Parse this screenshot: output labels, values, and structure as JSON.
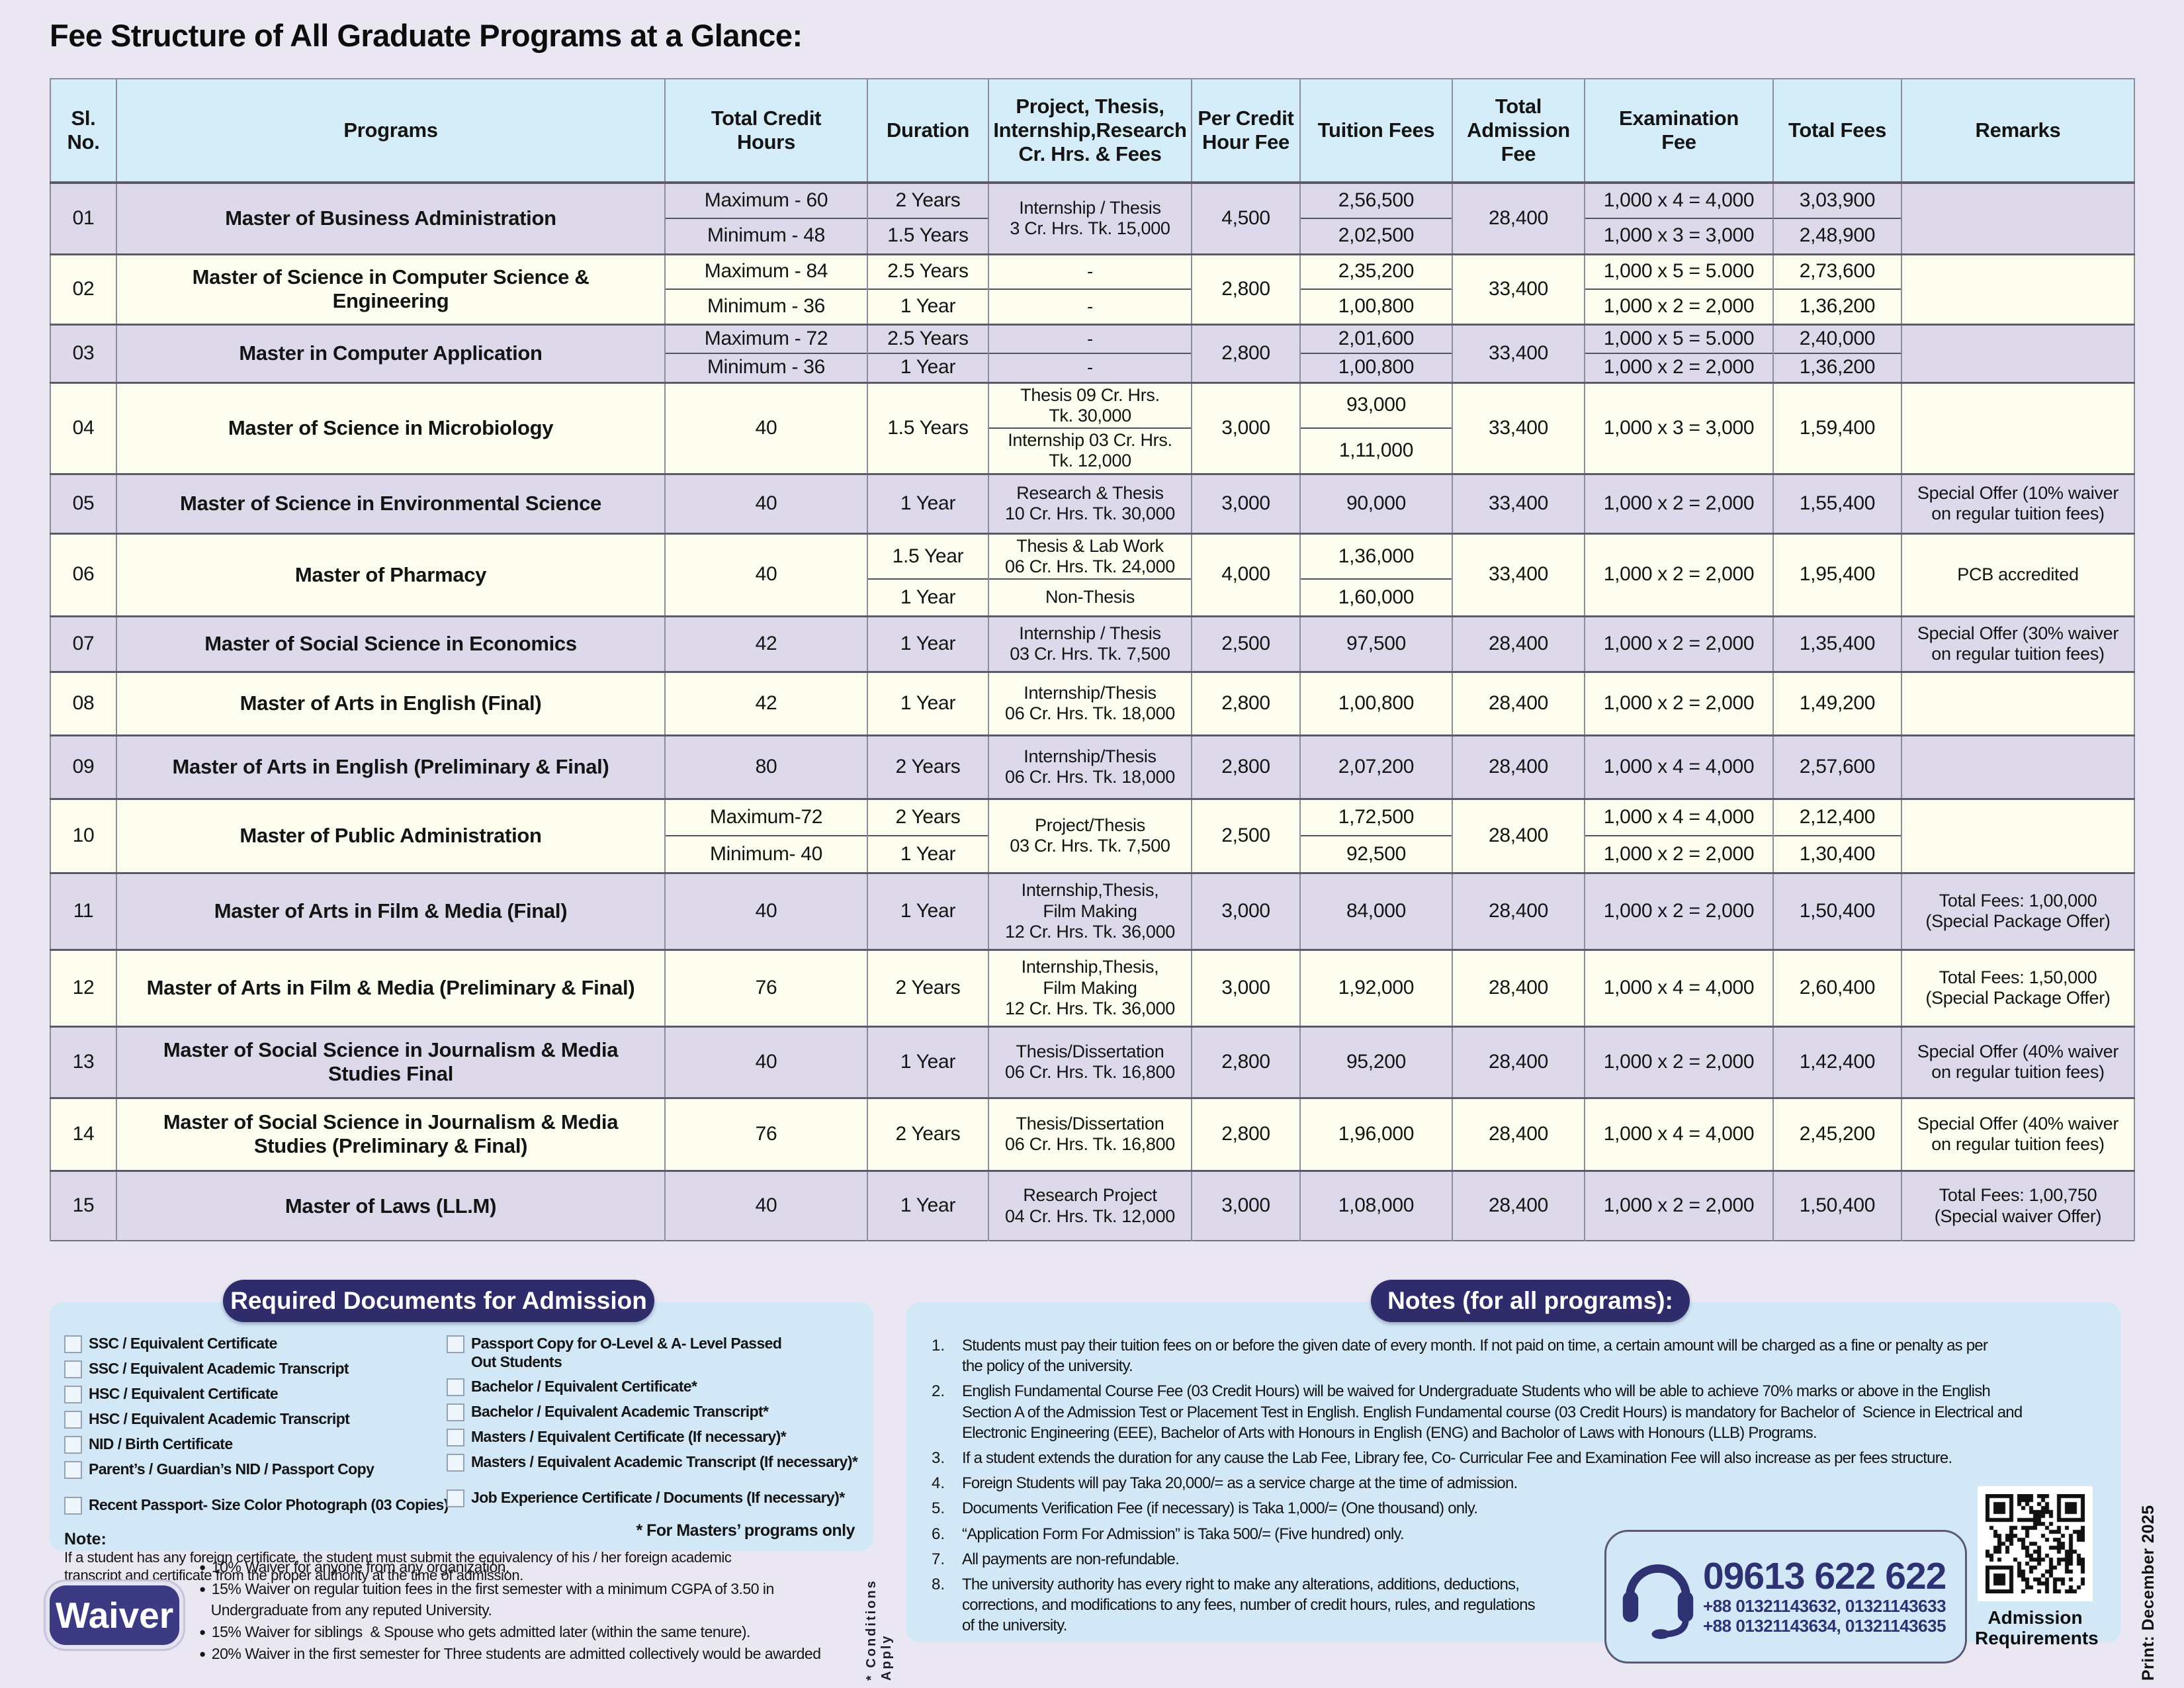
{
  "page": {
    "title": "Fee Structure of All Graduate Programs at a Glance:"
  },
  "colors": {
    "accent_navy": "#2e2c6b",
    "header_blue": "#d5edf9",
    "row_lavender": "#ddd8ea",
    "row_cream": "#fdfdef",
    "panel_blue": "#d3e8f7",
    "phone_navy": "#2e3272",
    "page_bg": "#eae7f3"
  },
  "table": {
    "columns": [
      "Sl.\nNo.",
      "Programs",
      "Total Credit\nHours",
      "Duration",
      "Project, Thesis,\nInternship,Research\nCr. Hrs. & Fees",
      "Per Credit\nHour Fee",
      "Tuition Fees",
      "Total\nAdmission\nFee",
      "Examination\nFee",
      "Total Fees",
      "Remarks"
    ],
    "rows": [
      {
        "sl": "01",
        "program": "Master of Business Administration",
        "shade": "lav",
        "credit": [
          "Maximum - 60",
          "Minimum - 48"
        ],
        "duration": [
          "2 Years",
          "1.5 Years"
        ],
        "project": [
          "Internship / Thesis\n3 Cr. Hrs. Tk. 15,000"
        ],
        "per_credit": [
          "4,500"
        ],
        "tuition": [
          "2,56,500",
          "2,02,500"
        ],
        "admission": [
          "28,400"
        ],
        "exam": [
          "1,000 x 4 = 4,000",
          "1,000 x 3 = 3,000"
        ],
        "total": [
          "3,03,900",
          "2,48,900"
        ],
        "remarks": [
          ""
        ]
      },
      {
        "sl": "02",
        "program": "Master of Science in Computer Science &\nEngineering",
        "shade": "cream",
        "credit": [
          "Maximum - 84",
          "Minimum - 36"
        ],
        "duration": [
          "2.5 Years",
          "1 Year"
        ],
        "project": [
          "-",
          "-"
        ],
        "per_credit": [
          "2,800"
        ],
        "tuition": [
          "2,35,200",
          "1,00,800"
        ],
        "admission": [
          "33,400"
        ],
        "exam": [
          "1,000 x 5 = 5.000",
          "1,000 x 2 = 2,000"
        ],
        "total": [
          "2,73,600",
          "1,36,200"
        ],
        "remarks": [
          ""
        ]
      },
      {
        "sl": "03",
        "program": "Master in Computer Application",
        "shade": "lav",
        "credit": [
          "Maximum - 72",
          "Minimum - 36"
        ],
        "duration": [
          "2.5 Years",
          "1 Year"
        ],
        "project": [
          "-",
          "-"
        ],
        "per_credit": [
          "2,800"
        ],
        "tuition": [
          "2,01,600",
          "1,00,800"
        ],
        "admission": [
          "33,400"
        ],
        "exam": [
          "1,000 x 5 = 5.000",
          "1,000 x 2 = 2,000"
        ],
        "total": [
          "2,40,000",
          "1,36,200"
        ],
        "remarks": [
          ""
        ]
      },
      {
        "sl": "04",
        "program": "Master of Science in Microbiology",
        "shade": "cream",
        "credit": [
          "40"
        ],
        "duration": [
          "1.5 Years"
        ],
        "project": [
          "Thesis 09 Cr. Hrs.\nTk. 30,000",
          "Internship 03 Cr. Hrs.\nTk. 12,000"
        ],
        "per_credit": [
          "3,000"
        ],
        "tuition": [
          "93,000",
          "1,11,000"
        ],
        "admission": [
          "33,400"
        ],
        "exam": [
          "1,000 x 3 = 3,000"
        ],
        "total": [
          "1,59,400"
        ],
        "remarks": [
          ""
        ]
      },
      {
        "sl": "05",
        "program": "Master of Science in Environmental Science",
        "shade": "lav",
        "credit": [
          "40"
        ],
        "duration": [
          "1 Year"
        ],
        "project": [
          "Research & Thesis\n10 Cr. Hrs. Tk. 30,000"
        ],
        "per_credit": [
          "3,000"
        ],
        "tuition": [
          "90,000"
        ],
        "admission": [
          "33,400"
        ],
        "exam": [
          "1,000 x 2 = 2,000"
        ],
        "total": [
          "1,55,400"
        ],
        "remarks": [
          "Special Offer (10% waiver\non regular tuition fees)"
        ]
      },
      {
        "sl": "06",
        "program": "Master of Pharmacy",
        "shade": "cream",
        "credit": [
          "40"
        ],
        "duration": [
          "1.5 Year",
          "1 Year"
        ],
        "project": [
          "Thesis & Lab Work\n06 Cr. Hrs. Tk. 24,000",
          "Non-Thesis"
        ],
        "per_credit": [
          "4,000"
        ],
        "tuition": [
          "1,36,000",
          "1,60,000"
        ],
        "admission": [
          "33,400"
        ],
        "exam": [
          "1,000 x 2 = 2,000"
        ],
        "total": [
          "1,95,400"
        ],
        "remarks": [
          "PCB accredited"
        ]
      },
      {
        "sl": "07",
        "program": "Master of Social Science in Economics",
        "shade": "lav",
        "credit": [
          "42"
        ],
        "duration": [
          "1 Year"
        ],
        "project": [
          "Internship / Thesis\n03 Cr. Hrs. Tk. 7,500"
        ],
        "per_credit": [
          "2,500"
        ],
        "tuition": [
          "97,500"
        ],
        "admission": [
          "28,400"
        ],
        "exam": [
          "1,000 x 2 = 2,000"
        ],
        "total": [
          "1,35,400"
        ],
        "remarks": [
          "Special Offer (30% waiver\non regular tuition fees)"
        ]
      },
      {
        "sl": "08",
        "program": "Master of Arts in English (Final)",
        "shade": "cream",
        "credit": [
          "42"
        ],
        "duration": [
          "1 Year"
        ],
        "project": [
          "Internship/Thesis\n06 Cr. Hrs. Tk. 18,000"
        ],
        "per_credit": [
          "2,800"
        ],
        "tuition": [
          "1,00,800"
        ],
        "admission": [
          "28,400"
        ],
        "exam": [
          "1,000 x 2 = 2,000"
        ],
        "total": [
          "1,49,200"
        ],
        "remarks": [
          ""
        ]
      },
      {
        "sl": "09",
        "program": "Master of Arts in English (Preliminary & Final)",
        "shade": "lav",
        "credit": [
          "80"
        ],
        "duration": [
          "2 Years"
        ],
        "project": [
          "Internship/Thesis\n06 Cr. Hrs. Tk. 18,000"
        ],
        "per_credit": [
          "2,800"
        ],
        "tuition": [
          "2,07,200"
        ],
        "admission": [
          "28,400"
        ],
        "exam": [
          "1,000 x 4 = 4,000"
        ],
        "total": [
          "2,57,600"
        ],
        "remarks": [
          ""
        ]
      },
      {
        "sl": "10",
        "program": "Master of Public Administration",
        "shade": "cream",
        "credit": [
          "Maximum-72",
          "Minimum- 40"
        ],
        "duration": [
          "2 Years",
          "1 Year"
        ],
        "project": [
          "Project/Thesis\n03 Cr. Hrs. Tk. 7,500"
        ],
        "per_credit": [
          "2,500"
        ],
        "tuition": [
          "1,72,500",
          "92,500"
        ],
        "admission": [
          "28,400"
        ],
        "exam": [
          "1,000 x 4 = 4,000",
          "1,000 x 2 = 2,000"
        ],
        "total": [
          "2,12,400",
          "1,30,400"
        ],
        "remarks": [
          ""
        ]
      },
      {
        "sl": "11",
        "program": "Master of Arts in Film & Media (Final)",
        "shade": "lav",
        "credit": [
          "40"
        ],
        "duration": [
          "1 Year"
        ],
        "project": [
          "Internship,Thesis,\nFilm Making\n12 Cr. Hrs. Tk. 36,000"
        ],
        "per_credit": [
          "3,000"
        ],
        "tuition": [
          "84,000"
        ],
        "admission": [
          "28,400"
        ],
        "exam": [
          "1,000 x 2 = 2,000"
        ],
        "total": [
          "1,50,400"
        ],
        "remarks": [
          "Total Fees: 1,00,000\n(Special Package Offer)"
        ]
      },
      {
        "sl": "12",
        "program": "Master of Arts in Film & Media (Preliminary & Final)",
        "shade": "cream",
        "credit": [
          "76"
        ],
        "duration": [
          "2 Years"
        ],
        "project": [
          "Internship,Thesis,\nFilm Making\n12 Cr. Hrs. Tk. 36,000"
        ],
        "per_credit": [
          "3,000"
        ],
        "tuition": [
          "1,92,000"
        ],
        "admission": [
          "28,400"
        ],
        "exam": [
          "1,000 x 4 = 4,000"
        ],
        "total": [
          "2,60,400"
        ],
        "remarks": [
          "Total Fees: 1,50,000\n(Special Package Offer)"
        ]
      },
      {
        "sl": "13",
        "program": "Master of Social Science in Journalism & Media\nStudies Final",
        "shade": "lav",
        "credit": [
          "40"
        ],
        "duration": [
          "1 Year"
        ],
        "project": [
          "Thesis/Dissertation\n06 Cr. Hrs. Tk. 16,800"
        ],
        "per_credit": [
          "2,800"
        ],
        "tuition": [
          "95,200"
        ],
        "admission": [
          "28,400"
        ],
        "exam": [
          "1,000 x 2 = 2,000"
        ],
        "total": [
          "1,42,400"
        ],
        "remarks": [
          "Special Offer (40% waiver\non regular tuition fees)"
        ]
      },
      {
        "sl": "14",
        "program": "Master of Social Science in Journalism & Media\nStudies (Preliminary & Final)",
        "shade": "cream",
        "credit": [
          "76"
        ],
        "duration": [
          "2 Years"
        ],
        "project": [
          "Thesis/Dissertation\n06 Cr. Hrs. Tk. 16,800"
        ],
        "per_credit": [
          "2,800"
        ],
        "tuition": [
          "1,96,000"
        ],
        "admission": [
          "28,400"
        ],
        "exam": [
          "1,000 x 4 = 4,000"
        ],
        "total": [
          "2,45,200"
        ],
        "remarks": [
          "Special Offer (40% waiver\non regular tuition fees)"
        ]
      },
      {
        "sl": "15",
        "program": "Master of Laws (LL.M)",
        "shade": "lav",
        "credit": [
          "40"
        ],
        "duration": [
          "1 Year"
        ],
        "project": [
          "Research Project\n04 Cr. Hrs. Tk. 12,000"
        ],
        "per_credit": [
          "3,000"
        ],
        "tuition": [
          "1,08,000"
        ],
        "admission": [
          "28,400"
        ],
        "exam": [
          "1,000 x 2 = 2,000"
        ],
        "total": [
          "1,50,400"
        ],
        "remarks": [
          "Total Fees: 1,00,750\n(Special waiver Offer)"
        ]
      }
    ]
  },
  "documents": {
    "title": "Required Documents for Admission",
    "col1": [
      "SSC / Equivalent Certificate",
      "SSC / Equivalent Academic Transcript",
      "HSC / Equivalent Certificate",
      "HSC / Equivalent Academic Transcript",
      "NID / Birth Certificate",
      "Parent’s / Guardian’s NID / Passport Copy",
      "Recent Passport- Size Color Photograph (03 Copies)"
    ],
    "col2": [
      "Passport Copy for O-Level & A- Level Passed\nOut Students",
      "Bachelor / Equivalent Certificate*",
      "Bachelor / Equivalent Academic Transcript*",
      "Masters / Equivalent Certificate (If necessary)*",
      "Masters / Equivalent Academic Transcript (If necessary)*",
      "Job Experience Certificate / Documents (If necessary)*"
    ],
    "note_label": "Note:",
    "note_text": "If a student has any foreign certificate, the student must submit the equivalency of his / her foreign academic\ntranscript and certificate from the proper authority at the time of admission.",
    "masters_footnote": "* For Masters’ programs only"
  },
  "waiver": {
    "badge": "Waiver",
    "bullets": [
      "10% Waiver for anyone from any organization.",
      "15% Waiver on regular tuition fees in the first semester with a minimum CGPA of 3.50 in\n   Undergraduate from any reputed University.",
      "15% Waiver for siblings  & Spouse who gets admitted later (within the same tenure).",
      "20% Waiver in the first semester for Three students are admitted collectively would be awarded"
    ],
    "conditions": "* Conditions Apply"
  },
  "notes": {
    "title": "Notes (for all programs):",
    "items": [
      "Students must pay their tuition fees on or before the given date of every month. If not paid on time, a certain amount will be charged as a fine or penalty as per\nthe policy of the university.",
      "English Fundamental Course Fee (03 Credit Hours) will be waived for Undergraduate Students who will be able to achieve 70% marks or above in the English\nSection A of the Admission Test or Placement Test in English. English Fundamental course (03 Credit Hours) is mandatory for Bachelor of  Science in Electrical and\nElectronic Engineering (EEE), Bachelor of Arts with Honours in English (ENG) and Bacholor of Laws with Honours (LLB) Programs.",
      "If a student extends the duration for any cause the Lab Fee, Library fee, Co- Curricular Fee and Examination Fee will also increase as per fees structure.",
      "Foreign Students will pay Taka 20,000/= as a service charge at the time of admission.",
      "Documents Verification Fee (if necessary) is Taka 1,000/= (One thousand) only.",
      "“Application Form For Admission” is Taka 500/= (Five hundred) only.",
      "All payments are non-refundable.",
      "The university authority has every right to make any alterations, additions, deductions,\ncorrections, and modifications to any fees, number of credit hours, rules, and regulations\nof the university."
    ]
  },
  "contact": {
    "hotline": "09613 622 622",
    "line1": "+88 01321143632, 01321143633",
    "line2": "+88 01321143634, 01321143635"
  },
  "qr": {
    "caption": "Admission\nRequirements"
  },
  "print_label": "Print:  December 2025"
}
